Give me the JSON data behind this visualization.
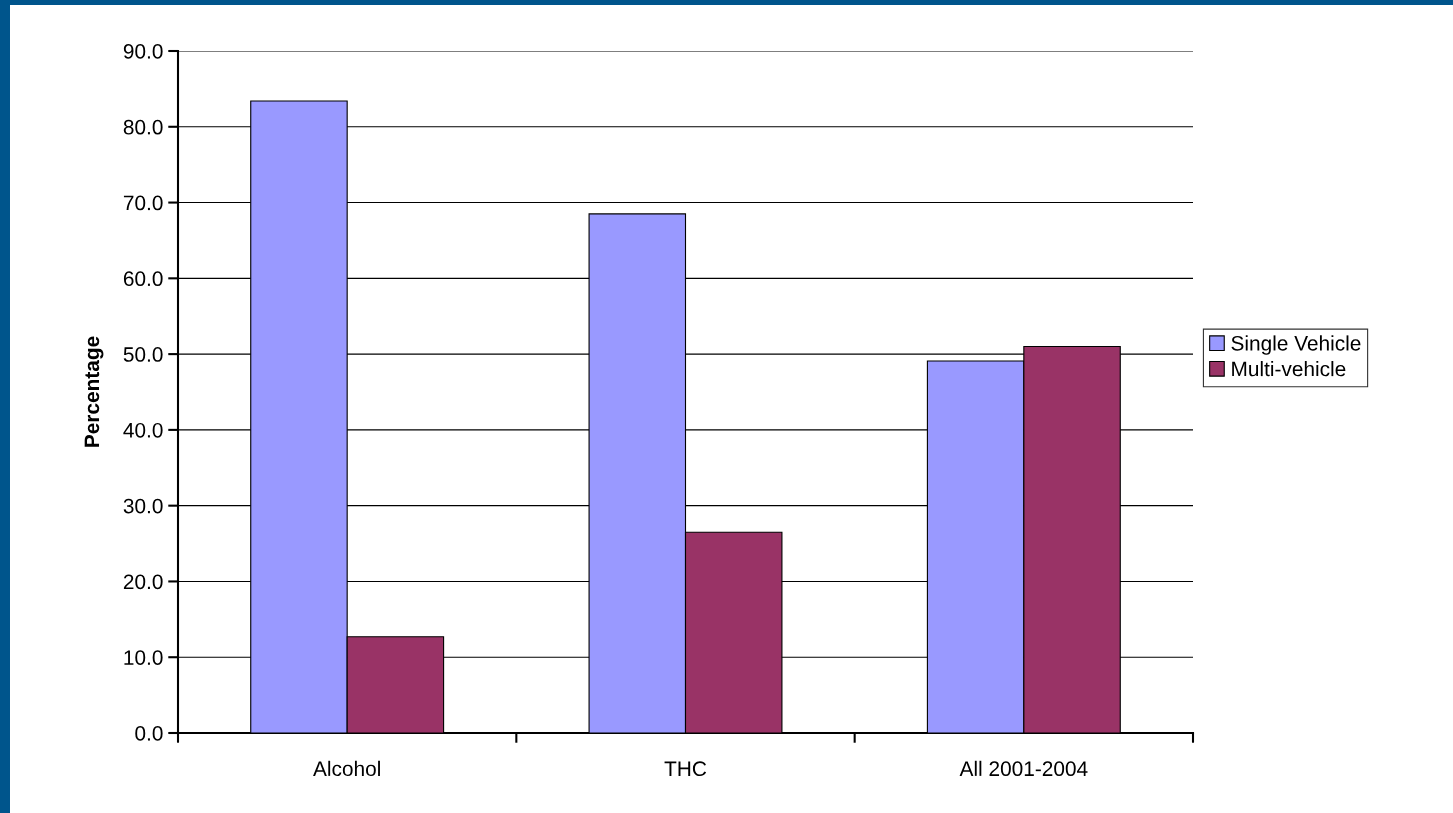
{
  "chart_data": {
    "type": "bar",
    "ylabel": "Percentage",
    "categories": [
      "Alcohol",
      "THC",
      "All 2001-2004"
    ],
    "series": [
      {
        "name": "Single Vehicle",
        "color": "#9999ff",
        "values": [
          83.4,
          68.5,
          49.1
        ]
      },
      {
        "name": "Multi-vehicle",
        "color": "#993366",
        "values": [
          12.7,
          26.5,
          51.0
        ]
      }
    ],
    "ylim": [
      0,
      90
    ],
    "yticks": [
      {
        "value": 0,
        "label": "0.0"
      },
      {
        "value": 10,
        "label": "10.0"
      },
      {
        "value": 20,
        "label": "20.0"
      },
      {
        "value": 30,
        "label": "30.0"
      },
      {
        "value": 40,
        "label": "40.0"
      },
      {
        "value": 50,
        "label": "50.0"
      },
      {
        "value": 60,
        "label": "60.0"
      },
      {
        "value": 70,
        "label": "70.0"
      },
      {
        "value": 80,
        "label": "80.0"
      },
      {
        "value": 90,
        "label": "90.0"
      }
    ],
    "grid": "y",
    "legend": "right"
  }
}
